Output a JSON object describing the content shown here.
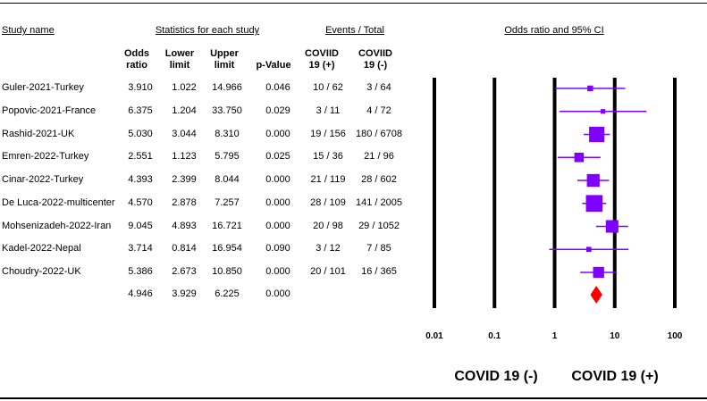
{
  "chart_data": {
    "type": "forest",
    "study_header": "Study name",
    "stats_header": "Statistics for each study",
    "events_header": "Events / Total",
    "plot_header": "Odds ratio and 95% CI",
    "categories": [
      "Guler-2021-Turkey",
      "Popovic-2021-France",
      "Rashid-2021-UK",
      "Emren-2022-Turkey",
      "Cinar-2022-Turkey",
      "De Luca-2022-multicenter",
      "Mohsenizadeh-2022-Iran",
      "Kadel-2022-Nepal",
      "Choudry-2022-UK"
    ],
    "series": [
      {
        "name": "Odds ratio",
        "values": [
          3.91,
          6.375,
          5.03,
          2.551,
          4.393,
          4.57,
          9.045,
          3.714,
          5.386
        ],
        "value_labels": [
          "3.910",
          "6.375",
          "5.030",
          "2.551",
          "4.393",
          "4.570",
          "9.045",
          "3.714",
          "5.386"
        ]
      },
      {
        "name": "Lower limit",
        "values": [
          1.022,
          1.204,
          3.044,
          1.123,
          2.399,
          2.878,
          4.893,
          0.814,
          2.673
        ],
        "value_labels": [
          "1.022",
          "1.204",
          "3.044",
          "1.123",
          "2.399",
          "2.878",
          "4.893",
          "0.814",
          "2.673"
        ]
      },
      {
        "name": "Upper limit",
        "values": [
          14.966,
          33.75,
          8.31,
          5.795,
          8.044,
          7.257,
          16.721,
          16.954,
          10.85
        ],
        "value_labels": [
          "14.966",
          "33.750",
          "8.310",
          "5.795",
          "8.044",
          "7.257",
          "16.721",
          "16.954",
          "10.850"
        ]
      },
      {
        "name": "p-Value",
        "values": [
          0.046,
          0.029,
          0,
          0.025,
          0,
          0,
          0,
          0.09,
          0
        ],
        "value_labels": [
          "0.046",
          "0.029",
          "0.000",
          "0.025",
          "0.000",
          "0.000",
          "0.000",
          "0.090",
          "0.000"
        ]
      }
    ],
    "events": [
      {
        "name": "COVIID 19 (+)",
        "values": [
          "10 / 62",
          "3 / 11",
          "19 / 156",
          "15 / 36",
          "21 / 119",
          "28 / 109",
          "20 / 98",
          "3 / 12",
          "20 / 101"
        ]
      },
      {
        "name": "COVIID 19 (-)",
        "values": [
          "3 / 64",
          "4 / 72",
          "180 / 6708",
          "21 / 96",
          "28 / 602",
          "141 / 2005",
          "29 / 1052",
          "7 / 85",
          "16 / 365"
        ]
      }
    ],
    "summary": {
      "values": [
        4.946,
        3.929,
        6.225,
        0
      ],
      "value_labels": [
        "4.946",
        "3.929",
        "6.225",
        "0.000"
      ],
      "color": "#ff0000"
    },
    "color": "#8000ff",
    "xscale": "log",
    "xlim": [
      0.01,
      100
    ],
    "xticks": [
      0.01,
      0.1,
      1,
      10,
      100
    ],
    "left_label": "COVID 19 (-)",
    "right_label": "COVID 19 (+)"
  }
}
